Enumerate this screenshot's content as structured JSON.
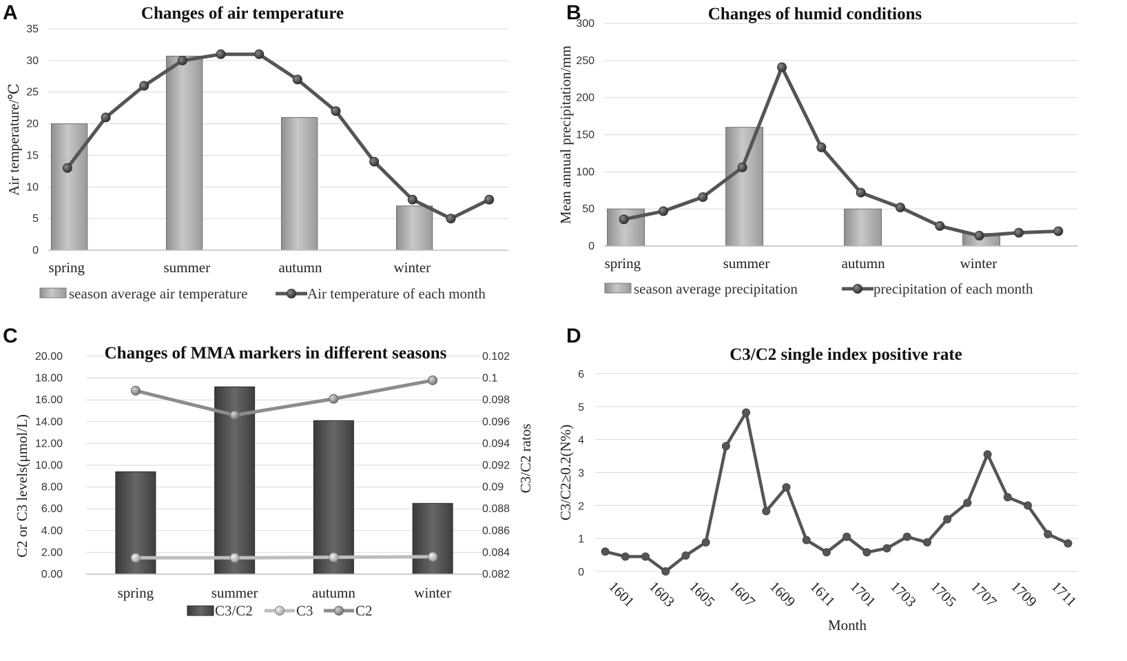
{
  "panels": {
    "A": "A",
    "B": "B",
    "C": "C",
    "D": "D"
  },
  "chart_data": [
    {
      "id": "A",
      "type": "bar+line",
      "title": "Changes of air temperature",
      "ylabel": "Air temperature/℃",
      "ylim": [
        0,
        35
      ],
      "yticks": [
        "0",
        "5",
        "10",
        "15",
        "20",
        "25",
        "30",
        "35"
      ],
      "categories": [
        "spring",
        "summer",
        "autumn",
        "winter"
      ],
      "bar_series": {
        "name": "season average air temperature",
        "values": [
          20,
          30.7,
          21,
          7
        ]
      },
      "line_series": {
        "name": "Air temperature of each month",
        "values": [
          13,
          21,
          26,
          30,
          31,
          31,
          27,
          22,
          14,
          8,
          5,
          8
        ]
      },
      "grid": true,
      "legend": "bottom"
    },
    {
      "id": "B",
      "type": "bar+line",
      "title": "Changes of humid conditions",
      "ylabel": "Mean annual precipitation/mm",
      "ylim": [
        0,
        300
      ],
      "yticks": [
        "0",
        "50",
        "100",
        "150",
        "200",
        "250",
        "300"
      ],
      "categories": [
        "spring",
        "summer",
        "autumn",
        "winter"
      ],
      "bar_series": {
        "name": "season average precipitation",
        "values": [
          50,
          160,
          50,
          17
        ]
      },
      "line_series": {
        "name": "precipitation of each month",
        "values": [
          36,
          47,
          66,
          106,
          241,
          133,
          72,
          52,
          27,
          14,
          18,
          20
        ]
      },
      "grid": true,
      "legend": "bottom"
    },
    {
      "id": "C",
      "type": "bar+line",
      "title": "Changes of MMA markers in different seasons",
      "ylabel": "C2 or C3 levels(μmol/L)",
      "y2label": "C3/C2 ratos",
      "ylim": [
        0,
        20
      ],
      "y2lim": [
        0.082,
        0.102
      ],
      "yticks": [
        "0.00",
        "2.00",
        "4.00",
        "6.00",
        "8.00",
        "10.00",
        "12.00",
        "14.00",
        "16.00",
        "18.00",
        "20.00"
      ],
      "y2ticks": [
        "0.082",
        "0.084",
        "0.086",
        "0.088",
        "0.09",
        "0.092",
        "0.094",
        "0.096",
        "0.098",
        "0.1",
        "0.102"
      ],
      "categories": [
        "spring",
        "summer",
        "autumn",
        "winter"
      ],
      "series": [
        {
          "name": "C3/C2",
          "kind": "bar",
          "axis": "right",
          "values": [
            0.0914,
            0.0992,
            0.0961,
            0.0885
          ]
        },
        {
          "name": "C3",
          "kind": "line",
          "axis": "left",
          "values": [
            1.5,
            1.5,
            1.55,
            1.6
          ]
        },
        {
          "name": "C2",
          "kind": "line",
          "axis": "left",
          "values": [
            16.85,
            14.6,
            16.1,
            17.8
          ]
        }
      ],
      "grid": true,
      "legend": "bottom"
    },
    {
      "id": "D",
      "type": "line",
      "title": "C3/C2 single index positive rate",
      "ylabel": "C3/C2≥0.2(N%)",
      "xlabel": "Month",
      "ylim": [
        0,
        6
      ],
      "yticks": [
        "0",
        "1",
        "2",
        "3",
        "4",
        "5",
        "6"
      ],
      "x": [
        "1601",
        "1602",
        "1603",
        "1604",
        "1605",
        "1606",
        "1607",
        "1608",
        "1609",
        "1610",
        "1611",
        "1612",
        "1701",
        "1702",
        "1703",
        "1704",
        "1705",
        "1706",
        "1707",
        "1708",
        "1709",
        "1710",
        "1711",
        "1712"
      ],
      "xtick_labels": [
        "1601",
        "1603",
        "1605",
        "1607",
        "1609",
        "1611",
        "1701",
        "1703",
        "1705",
        "1707",
        "1709",
        "1711"
      ],
      "values": [
        0.6,
        0.45,
        0.45,
        0.0,
        0.48,
        0.88,
        3.8,
        4.82,
        1.83,
        2.55,
        0.95,
        0.58,
        1.05,
        0.58,
        0.7,
        1.05,
        0.88,
        1.58,
        2.08,
        3.55,
        2.25,
        2.0,
        1.13,
        0.85
      ],
      "grid": true
    }
  ]
}
